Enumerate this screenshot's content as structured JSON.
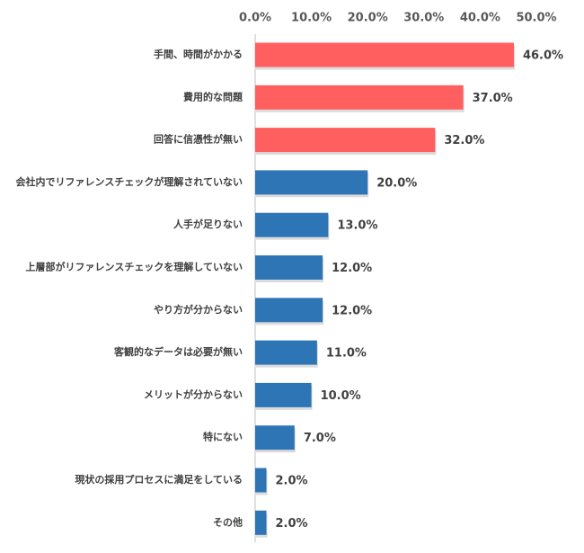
{
  "chart_data": {
    "type": "bar",
    "orientation": "horizontal",
    "title": "",
    "xlabel": "",
    "ylabel": "",
    "xlim": [
      0,
      50
    ],
    "x_ticks": [
      "0.0%",
      "10.0%",
      "20.0%",
      "30.0%",
      "40.0%",
      "50.0%"
    ],
    "x_axis_position": "top",
    "grid": false,
    "categories": [
      "手間、時間がかかる",
      "費用的な問題",
      "回答に信憑性が無い",
      "会社内でリファレンスチェックが理解されていない",
      "人手が足りない",
      "上層部がリファレンスチェックを理解していない",
      "やり方が分からない",
      "客観的なデータは必要が無い",
      "メリットが分からない",
      "特にない",
      "現状の採用プロセスに満足をしている",
      "その他"
    ],
    "values": [
      46.0,
      37.0,
      32.0,
      20.0,
      13.0,
      12.0,
      12.0,
      11.0,
      10.0,
      7.0,
      2.0,
      2.0
    ],
    "value_labels": [
      "46.0%",
      "37.0%",
      "32.0%",
      "20.0%",
      "13.0%",
      "12.0%",
      "12.0%",
      "11.0%",
      "10.0%",
      "7.0%",
      "2.0%",
      "2.0%"
    ],
    "highlight_count": 3,
    "colors": {
      "highlight": "#FF5F5F",
      "default": "#2E75B6",
      "axis": "#BFBFBF"
    }
  }
}
